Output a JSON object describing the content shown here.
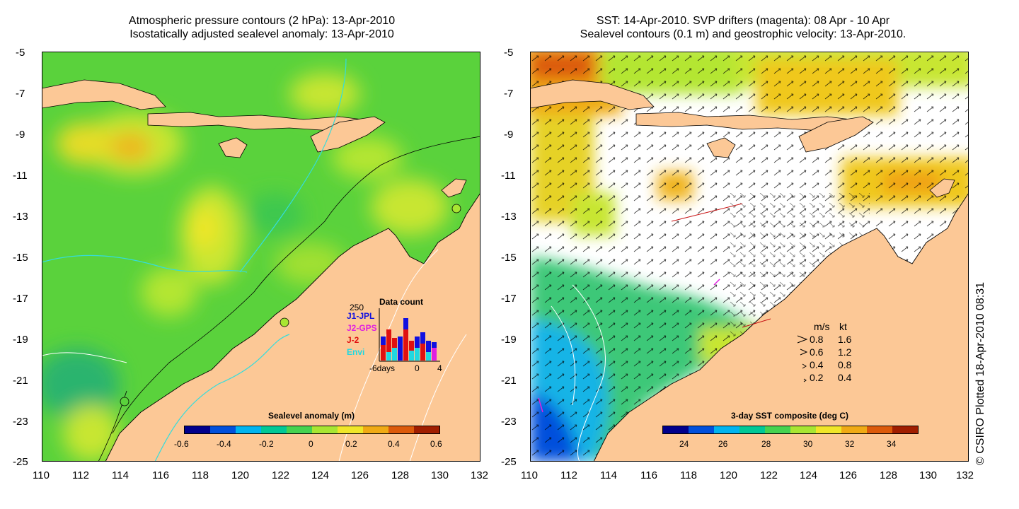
{
  "left_panel": {
    "title_line1": "Atmospheric pressure contours (2 hPa): 13-Apr-2010",
    "title_line2": "Isostatically adjusted sealevel anomaly: 13-Apr-2010",
    "x_ticks": [
      "110",
      "112",
      "114",
      "116",
      "118",
      "120",
      "122",
      "124",
      "126",
      "128",
      "130",
      "132"
    ],
    "y_ticks": [
      "-5",
      "-7",
      "-9",
      "-11",
      "-13",
      "-15",
      "-17",
      "-19",
      "-21",
      "-23",
      "-25"
    ],
    "colorbar": {
      "label": "Sealevel anomaly (m)",
      "ticks": [
        "-0.6",
        "-0.4",
        "-0.2",
        "0",
        "0.2",
        "0.4",
        "0.6"
      ],
      "colors": [
        "#00008c",
        "#0050dc",
        "#00b4f0",
        "#00c896",
        "#46d250",
        "#a8e632",
        "#f0e628",
        "#f0aa14",
        "#dc5a0a",
        "#a01e00"
      ]
    },
    "inset": {
      "title": "Data count",
      "ymax_label": "250",
      "legend": [
        {
          "name": "J1-JPL",
          "color": "#1010e0"
        },
        {
          "name": "J2-GPS",
          "color": "#e020e0"
        },
        {
          "name": "J-2",
          "color": "#e01010"
        },
        {
          "name": "Envi",
          "color": "#20d8e0"
        }
      ],
      "x_labels": [
        "-6days",
        "0",
        "4"
      ]
    }
  },
  "right_panel": {
    "title_line1": "SST: 14-Apr-2010. SVP drifters (magenta): 08 Apr - 10 Apr",
    "title_line2": "Sealevel contours (0.1 m) and geostrophic velocity: 13-Apr-2010.",
    "x_ticks": [
      "110",
      "112",
      "114",
      "116",
      "118",
      "120",
      "122",
      "124",
      "126",
      "128",
      "130",
      "132"
    ],
    "y_ticks": [
      "-5",
      "-7",
      "-9",
      "-11",
      "-13",
      "-15",
      "-17",
      "-19",
      "-21",
      "-23",
      "-25"
    ],
    "colorbar": {
      "label": "3-day SST composite (deg C)",
      "ticks": [
        "24",
        "26",
        "28",
        "30",
        "32",
        "34"
      ],
      "colors": [
        "#00008c",
        "#0050dc",
        "#00b4f0",
        "#00c896",
        "#46d250",
        "#a8e632",
        "#f0e628",
        "#f0aa14",
        "#dc5a0a",
        "#a01e00"
      ]
    },
    "velocity_legend": {
      "header_ms": "m/s",
      "header_kt": "kt",
      "rows": [
        {
          "ms": "0.8",
          "kt": "1.6"
        },
        {
          "ms": "0.6",
          "kt": "1.2"
        },
        {
          "ms": "0.4",
          "kt": "0.8"
        },
        {
          "ms": "0.2",
          "kt": "0.4"
        }
      ]
    }
  },
  "credit": "© CSIRO Plotted 18-Apr-2010 08:31",
  "colors": {
    "land": "#fcc896",
    "ocean_green": "#5ad23c",
    "no_data": "#ffffff"
  }
}
